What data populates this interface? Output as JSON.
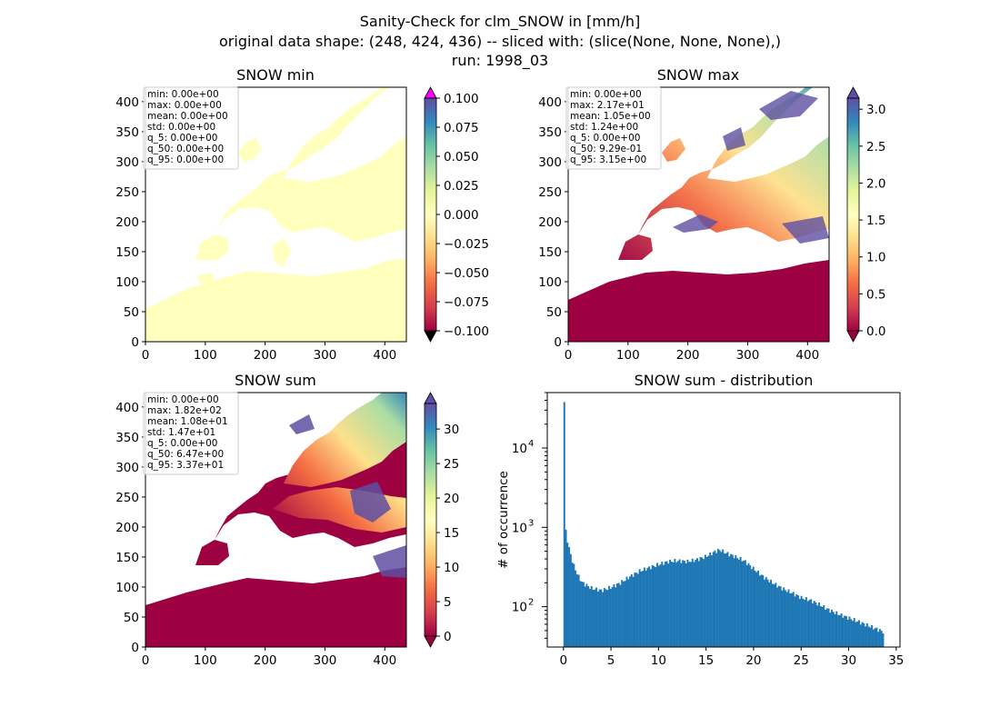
{
  "figure": {
    "title_lines": [
      "Sanity-Check for clm_SNOW in [mm/h]",
      "original data shape: (248, 424, 436) -- sliced with: (slice(None, None, None),)",
      "run: 1998_03"
    ]
  },
  "chart_data": [
    {
      "type": "heatmap",
      "title": "SNOW min",
      "xticks": [
        0,
        100,
        200,
        300,
        400
      ],
      "yticks": [
        0,
        50,
        100,
        150,
        200,
        250,
        300,
        350,
        400
      ],
      "xlim": [
        0,
        436
      ],
      "ylim": [
        0,
        424
      ],
      "colormap": "Spectral",
      "colorbar": {
        "ticks": [
          "−0.100",
          "−0.075",
          "−0.050",
          "−0.025",
          "0.000",
          "0.025",
          "0.050",
          "0.075",
          "0.100"
        ],
        "range": [
          -0.1,
          0.1
        ],
        "extend_top_color": "#ff00ff",
        "extend_bottom_color": "#000000"
      },
      "stats": [
        "min: 0.00e+00",
        "max: 0.00e+00",
        "mean: 0.00e+00",
        "std: 0.00e+00",
        "q_5: 0.00e+00",
        "q_50: 0.00e+00",
        "q_95: 0.00e+00"
      ],
      "land_color": "#ffffbe"
    },
    {
      "type": "heatmap",
      "title": "SNOW max",
      "xticks": [
        0,
        100,
        200,
        300,
        400
      ],
      "yticks": [
        0,
        50,
        100,
        150,
        200,
        250,
        300,
        350,
        400
      ],
      "xlim": [
        0,
        436
      ],
      "ylim": [
        0,
        424
      ],
      "colormap": "Spectral",
      "colorbar": {
        "ticks": [
          "0.0",
          "0.5",
          "1.0",
          "1.5",
          "2.0",
          "2.5",
          "3.0"
        ],
        "range": [
          0,
          3.15
        ]
      },
      "stats": [
        "min: 0.00e+00",
        "max: 2.17e+01",
        "mean: 1.05e+00",
        "std: 1.24e+00",
        "q_5: 0.00e+00",
        "q_50: 9.29e-01",
        "q_95: 3.15e+00"
      ]
    },
    {
      "type": "heatmap",
      "title": "SNOW sum",
      "xticks": [
        0,
        100,
        200,
        300,
        400
      ],
      "yticks": [
        0,
        50,
        100,
        150,
        200,
        250,
        300,
        350,
        400
      ],
      "xlim": [
        0,
        436
      ],
      "ylim": [
        0,
        424
      ],
      "colormap": "Spectral",
      "colorbar": {
        "ticks": [
          "0",
          "5",
          "10",
          "15",
          "20",
          "25",
          "30"
        ],
        "range": [
          0,
          33.7
        ]
      },
      "stats": [
        "min: 0.00e+00",
        "max: 1.82e+02",
        "mean: 1.08e+01",
        "std: 1.47e+01",
        "q_5: 0.00e+00",
        "q_50: 6.47e+00",
        "q_95: 3.37e+01"
      ]
    },
    {
      "type": "bar",
      "title": "SNOW sum - distribution",
      "ylabel": "# of occurrence",
      "xlabel": "",
      "xticks": [
        0,
        5,
        10,
        15,
        20,
        25,
        30,
        35
      ],
      "xlim": [
        -1.7,
        35.4
      ],
      "ylim_log": [
        31,
        50000
      ],
      "yscale": "log",
      "ytick_labels": [
        "10",
        "10",
        "10"
      ],
      "ytick_exponents": [
        "2",
        "3",
        "4"
      ],
      "bar_color": "#1f77b4",
      "bin_range": [
        0,
        33.7
      ],
      "x": [
        0.0,
        0.25,
        0.5,
        1.0,
        1.5,
        2.0,
        3.0,
        4.0,
        5.0,
        6.0,
        7.0,
        8.0,
        9.0,
        10.0,
        11.0,
        12.0,
        13.0,
        14.0,
        15.0,
        16.0,
        16.5,
        17.0,
        18.0,
        19.0,
        20.0,
        21.0,
        22.0,
        23.0,
        24.0,
        25.0,
        26.0,
        27.0,
        28.0,
        29.0,
        30.0,
        31.0,
        32.0,
        33.0,
        33.7
      ],
      "values": [
        38000,
        900,
        600,
        350,
        250,
        200,
        170,
        160,
        175,
        200,
        240,
        280,
        310,
        340,
        370,
        380,
        370,
        390,
        430,
        500,
        520,
        480,
        430,
        380,
        300,
        240,
        200,
        170,
        150,
        130,
        120,
        105,
        90,
        80,
        72,
        65,
        58,
        52,
        48
      ]
    }
  ]
}
